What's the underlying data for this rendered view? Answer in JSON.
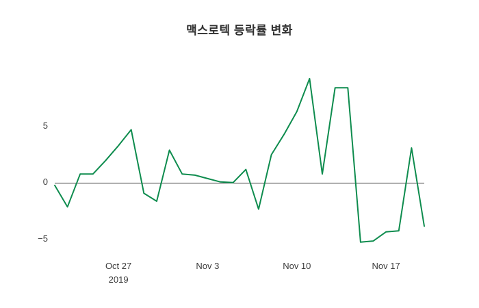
{
  "chart": {
    "title": "맥스로텍 등락률 변화",
    "line_color": "#0e8c4e",
    "zero_line_color": "#333333",
    "background_color": "#ffffff",
    "text_color": "#3b3b3b"
  },
  "chart_data": {
    "type": "line",
    "title": "맥스로텍 등락률 변화",
    "xlabel": "",
    "ylabel": "",
    "grid": false,
    "legend": "none",
    "xlim": [
      0,
      29
    ],
    "ylim": [
      -6.3,
      10.7
    ],
    "x": [
      0,
      1,
      2,
      3,
      4,
      5,
      6,
      7,
      8,
      9,
      10,
      11,
      12,
      13,
      14,
      15,
      16,
      17,
      18,
      19,
      20,
      21,
      22,
      23,
      24,
      25,
      26,
      27,
      28,
      29
    ],
    "values": [
      -0.2,
      -2.1,
      0.8,
      0.8,
      2.0,
      3.3,
      4.7,
      -0.9,
      -1.6,
      2.9,
      0.8,
      0.7,
      0.4,
      0.1,
      0.05,
      1.2,
      -2.3,
      2.5,
      4.3,
      6.3,
      9.2,
      0.8,
      8.4,
      8.4,
      -5.2,
      -5.1,
      -4.3,
      -4.2,
      3.1,
      -3.8
    ],
    "x_ticks": [
      {
        "day": 5,
        "label": "Oct 27",
        "sublabel": "2019"
      },
      {
        "day": 12,
        "label": "Nov 3",
        "sublabel": ""
      },
      {
        "day": 19,
        "label": "Nov 10",
        "sublabel": ""
      },
      {
        "day": 26,
        "label": "Nov 17",
        "sublabel": ""
      }
    ],
    "y_ticks": [
      {
        "value": 5,
        "label": "5"
      },
      {
        "value": 0,
        "label": "0"
      },
      {
        "value": -5,
        "label": "−5"
      }
    ]
  }
}
